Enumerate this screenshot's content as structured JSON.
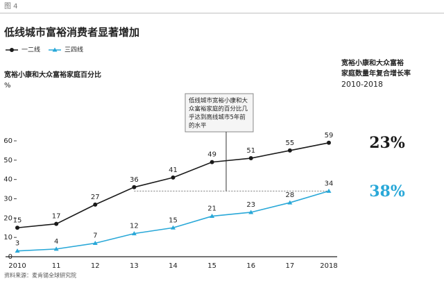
{
  "figure_label": "图 4",
  "footer": "资料来源：麦肯锡全球研究院",
  "chart_data": {
    "type": "line",
    "title": "低线城市富裕消费者显著增加",
    "y_label": "宽裕小康和大众富裕家庭百分比",
    "y_unit": "%",
    "categories": [
      "2010",
      "11",
      "12",
      "13",
      "14",
      "15",
      "16",
      "17",
      "2018"
    ],
    "series": [
      {
        "name": "一二线",
        "color": "#1a1a1a",
        "marker": "circle",
        "values": [
          15,
          17,
          27,
          36,
          41,
          49,
          51,
          55,
          59
        ],
        "growth_label": "23%"
      },
      {
        "name": "三四线",
        "color": "#29a8d8",
        "marker": "triangle",
        "values": [
          3,
          4,
          7,
          12,
          15,
          21,
          23,
          28,
          34
        ],
        "growth_label": "38%"
      }
    ],
    "ylim": [
      0,
      60
    ],
    "yticks": [
      0,
      10,
      20,
      30,
      40,
      50,
      60
    ],
    "grid": false,
    "growth_header": [
      "宽裕小康和大众富裕",
      "家庭数量年复合增长率"
    ],
    "growth_period": "2010-2018",
    "annotation": [
      "低线城市宽裕小康和大",
      "众富裕家庭的百分比几",
      "乎达到高线城市5年前",
      "的水平"
    ]
  }
}
